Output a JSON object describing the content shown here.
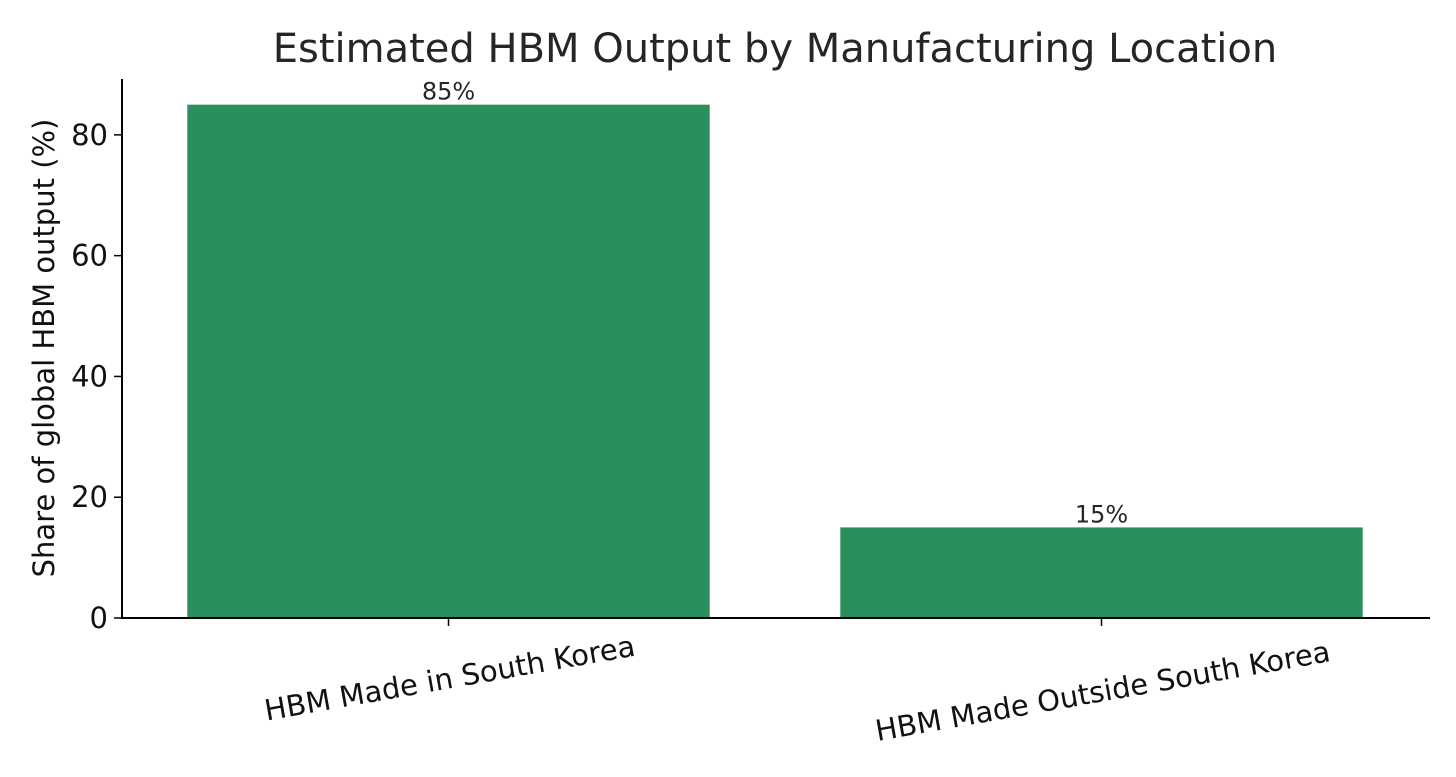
{
  "chart_data": {
    "type": "bar",
    "title": "Estimated HBM Output by Manufacturing Location",
    "xlabel": "",
    "ylabel": "Share of global HBM output (%)",
    "categories": [
      "HBM Made in South Korea",
      "HBM Made Outside South Korea"
    ],
    "values": [
      85,
      15
    ],
    "value_labels": [
      "85%",
      "15%"
    ],
    "yticks": [
      0,
      20,
      40,
      60,
      80
    ],
    "ytick_labels": [
      "0",
      "20",
      "40",
      "60",
      "80"
    ],
    "ylim": [
      0,
      89.25
    ],
    "grid": false,
    "legend": "none",
    "colors": {
      "bar": "#2b8f5d",
      "axis": "#000000",
      "text": "#262626"
    }
  }
}
